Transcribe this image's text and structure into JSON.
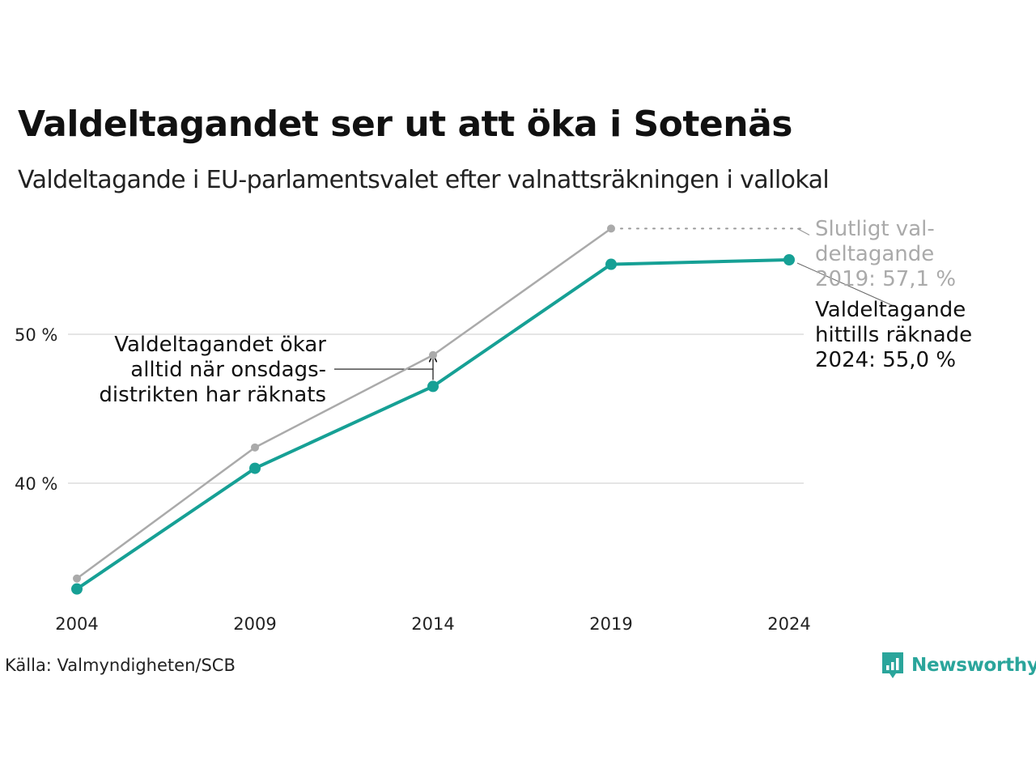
{
  "title": "Valdeltagandet ser ut att öka i Sotenäs",
  "subtitle": "Valdeltagande i EU-parlamentsvalet efter valnattsräkningen i vallokal",
  "source": "Källa: Valmyndigheten/SCB",
  "brand": {
    "name": "Newsworthy",
    "logo_icon": "bar-chart-badge-icon"
  },
  "colors": {
    "final": "#aaaaaa",
    "preliminary": "#16a095",
    "grid": "#e5e5e5",
    "text": "#111111"
  },
  "chart_data": {
    "type": "line",
    "x": [
      2004,
      2009,
      2014,
      2019,
      2024
    ],
    "xtick_labels": [
      "2004",
      "2009",
      "2014",
      "2019",
      "2024"
    ],
    "yticks": [
      40,
      50
    ],
    "ytick_labels": [
      "40 %",
      "50 %"
    ],
    "ylim": [
      32.5,
      58.5
    ],
    "grid": "horizontal",
    "series": [
      {
        "key": "final",
        "values": [
          33.6,
          42.4,
          48.6,
          57.1,
          null
        ]
      },
      {
        "key": "preliminary",
        "values": [
          32.9,
          41.0,
          46.5,
          54.7,
          55.0
        ]
      }
    ],
    "annotations": {
      "final_lines": [
        "Slutligt val-",
        "deltagande",
        "2019: 57,1 %"
      ],
      "preliminary_lines": [
        "Valdeltagande",
        "hittills räknade",
        "2024: 55,0 %"
      ],
      "wednesday_lines": [
        "Valdeltagandet ökar",
        "alltid när onsdags-",
        "distrikten har räknats"
      ]
    }
  }
}
